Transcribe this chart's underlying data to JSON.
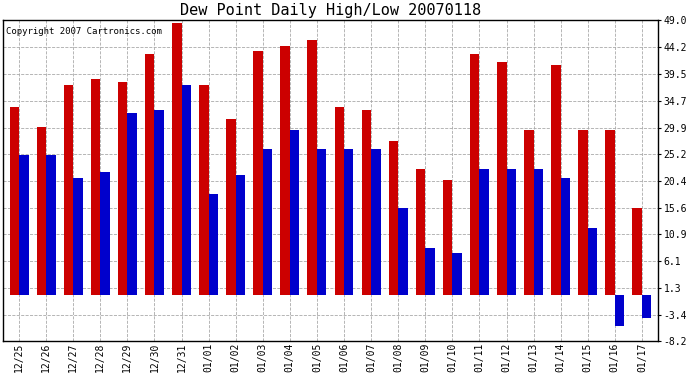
{
  "title": "Dew Point Daily High/Low 20070118",
  "copyright": "Copyright 2007 Cartronics.com",
  "dates": [
    "12/25",
    "12/26",
    "12/27",
    "12/28",
    "12/29",
    "12/30",
    "12/31",
    "01/01",
    "01/02",
    "01/03",
    "01/04",
    "01/05",
    "01/06",
    "01/07",
    "01/08",
    "01/09",
    "01/10",
    "01/11",
    "01/12",
    "01/13",
    "01/14",
    "01/15",
    "01/16",
    "01/17"
  ],
  "highs": [
    33.5,
    30.0,
    37.5,
    38.5,
    38.0,
    43.0,
    48.5,
    37.5,
    31.5,
    43.5,
    44.5,
    45.5,
    33.5,
    33.0,
    27.5,
    22.5,
    20.5,
    43.0,
    41.5,
    29.5,
    41.0,
    29.5,
    29.5,
    15.5
  ],
  "lows": [
    25.0,
    25.0,
    21.0,
    22.0,
    32.5,
    33.0,
    37.5,
    18.0,
    21.5,
    26.0,
    29.5,
    26.0,
    26.0,
    26.0,
    15.6,
    8.5,
    7.5,
    22.5,
    22.5,
    22.5,
    21.0,
    12.0,
    -5.5,
    -4.0
  ],
  "high_color": "#cc0000",
  "low_color": "#0000cc",
  "ylim": [
    -8.2,
    49.0
  ],
  "yticks": [
    -8.2,
    -3.4,
    1.3,
    6.1,
    10.9,
    15.6,
    20.4,
    25.2,
    29.9,
    34.7,
    39.5,
    44.2,
    49.0
  ],
  "grid_color": "#aaaaaa",
  "background_color": "#ffffff",
  "plot_bg_color": "#ffffff",
  "bar_width": 0.35,
  "title_fontsize": 11,
  "tick_fontsize": 7,
  "copyright_fontsize": 6.5,
  "figwidth": 6.9,
  "figheight": 3.75,
  "dpi": 100
}
